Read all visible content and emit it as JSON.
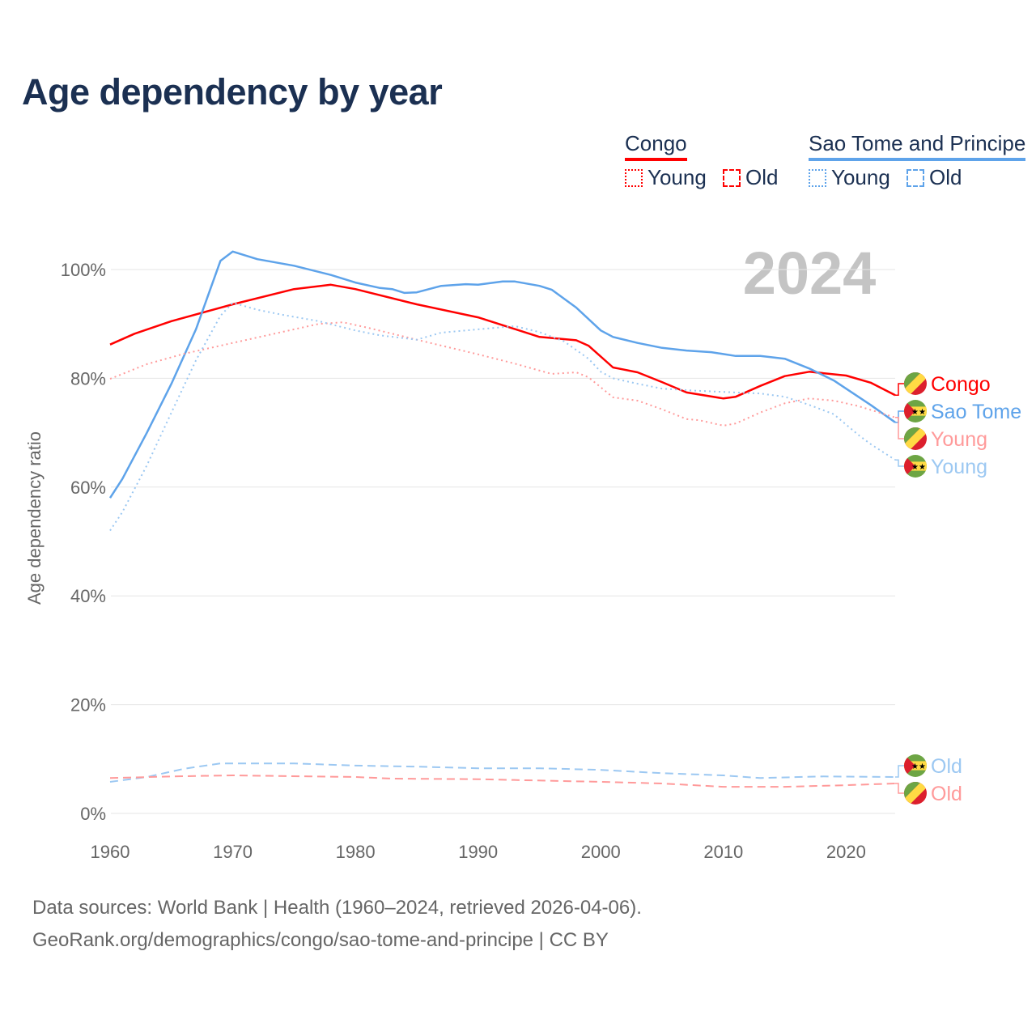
{
  "title": "Age dependency by year",
  "legend": {
    "groups": [
      {
        "name": "Congo",
        "color": "#ff0000",
        "items": [
          "Young",
          "Old"
        ]
      },
      {
        "name": "Sao Tome and Principe",
        "color": "#5ea3ea",
        "items": [
          "Young",
          "Old"
        ]
      }
    ]
  },
  "year_overlay": "2024",
  "footer": {
    "line1": "Data sources: World Bank | Health (1960–2024, retrieved 2026-04-06).",
    "line2": "GeoRank.org/demographics/congo/sao-tome-and-principe | CC BY"
  },
  "chart_data": {
    "type": "line",
    "title": "Age dependency by year",
    "xlabel": "",
    "ylabel": "Age dependency ratio",
    "xlim": [
      1960,
      2024
    ],
    "ylim": [
      0,
      110
    ],
    "x_ticks": [
      "1960",
      "1970",
      "1980",
      "1990",
      "2000",
      "2010",
      "2020"
    ],
    "y_ticks": [
      "0%",
      "20%",
      "40%",
      "60%",
      "80%",
      "100%"
    ],
    "grid": true,
    "legend_position": "top-right",
    "series": [
      {
        "name": "Congo",
        "end_label": "Congo",
        "country": "congo",
        "style": "solid",
        "color": "#ff0000",
        "x": [
          1960,
          1962,
          1965,
          1970,
          1975,
          1978,
          1980,
          1985,
          1990,
          1995,
          1998,
          1999,
          2001,
          2003,
          2005,
          2007,
          2010,
          2011,
          2013,
          2015,
          2017,
          2020,
          2022,
          2024
        ],
        "y": [
          86.2,
          88.2,
          90.5,
          93.6,
          96.4,
          97.2,
          96.4,
          93.6,
          91.2,
          87.6,
          87.0,
          86.0,
          82.0,
          81.1,
          79.3,
          77.4,
          76.3,
          76.6,
          78.6,
          80.4,
          81.2,
          80.5,
          79.2,
          76.9
        ]
      },
      {
        "name": "Sao Tome and Principe",
        "end_label": "Sao Tome",
        "country": "stp",
        "style": "solid",
        "color": "#5ea3ea",
        "x": [
          1960,
          1961,
          1963,
          1965,
          1967,
          1969,
          1970,
          1972,
          1975,
          1978,
          1980,
          1982,
          1983,
          1984,
          1985,
          1987,
          1989,
          1990,
          1992,
          1993,
          1995,
          1996,
          1998,
          2000,
          2001,
          2003,
          2005,
          2007,
          2009,
          2011,
          2013,
          2015,
          2017,
          2019,
          2020,
          2022,
          2024
        ],
        "y": [
          58.0,
          61.5,
          70.0,
          79.0,
          89.0,
          101.6,
          103.3,
          101.9,
          100.7,
          99.0,
          97.6,
          96.6,
          96.4,
          95.7,
          95.8,
          97.0,
          97.3,
          97.2,
          97.8,
          97.8,
          97.0,
          96.3,
          93.0,
          88.8,
          87.6,
          86.5,
          85.6,
          85.1,
          84.8,
          84.1,
          84.1,
          83.6,
          81.8,
          79.6,
          78.1,
          75.1,
          71.9
        ]
      },
      {
        "name": "Congo Young",
        "end_label": "Young",
        "country": "congo",
        "style": "dotted",
        "color": "#ff9a9a",
        "x": [
          1960,
          1963,
          1966,
          1970,
          1975,
          1977,
          1979,
          1981,
          1985,
          1990,
          1993,
          1996,
          1998,
          1999,
          2001,
          2003,
          2005,
          2007,
          2008,
          2010,
          2011,
          2013,
          2015,
          2017,
          2019,
          2021,
          2024
        ],
        "y": [
          79.9,
          82.6,
          84.5,
          86.5,
          89.0,
          90.0,
          90.3,
          89.3,
          87.1,
          84.4,
          82.7,
          80.8,
          81.1,
          80.2,
          76.5,
          75.9,
          74.3,
          72.5,
          72.3,
          71.3,
          71.7,
          73.7,
          75.4,
          76.3,
          75.9,
          74.9,
          72.8
        ]
      },
      {
        "name": "Sao Tome and Principe Young",
        "end_label": "Young",
        "country": "stp",
        "style": "dotted",
        "color": "#9cc8f2",
        "x": [
          1960,
          1961,
          1963,
          1965,
          1967,
          1969,
          1970,
          1972,
          1974,
          1977,
          1980,
          1982,
          1985,
          1987,
          1990,
          1993,
          1995,
          1997,
          1999,
          2000,
          2001,
          2003,
          2005,
          2008,
          2010,
          2013,
          2015,
          2017,
          2019,
          2021,
          2022,
          2024
        ],
        "y": [
          52.0,
          55.4,
          64.0,
          73.7,
          83.3,
          91.5,
          93.9,
          92.6,
          91.7,
          90.5,
          88.8,
          87.9,
          87.1,
          88.4,
          89.0,
          89.6,
          88.5,
          86.8,
          83.6,
          81.2,
          80.0,
          79.0,
          78.1,
          77.7,
          77.5,
          77.2,
          76.6,
          75.1,
          73.4,
          69.6,
          67.9,
          65.0
        ]
      },
      {
        "name": "Sao Tome and Principe Old",
        "end_label": "Old",
        "country": "stp",
        "style": "dashed",
        "color": "#9cc8f2",
        "x": [
          1960,
          1963,
          1966,
          1969,
          1975,
          1980,
          1985,
          1990,
          1995,
          2000,
          2005,
          2010,
          2013,
          2018,
          2024
        ],
        "y": [
          5.8,
          6.7,
          8.2,
          9.2,
          9.2,
          8.8,
          8.6,
          8.3,
          8.3,
          8.0,
          7.4,
          7.0,
          6.5,
          6.8,
          6.7
        ]
      },
      {
        "name": "Congo Old",
        "end_label": "Old",
        "country": "congo",
        "style": "dashed",
        "color": "#ff9a9a",
        "x": [
          1960,
          1965,
          1970,
          1980,
          1983,
          1990,
          2000,
          2005,
          2010,
          2015,
          2020,
          2024
        ],
        "y": [
          6.5,
          6.8,
          7.0,
          6.7,
          6.4,
          6.3,
          5.8,
          5.5,
          4.9,
          4.9,
          5.2,
          5.5
        ]
      }
    ]
  }
}
